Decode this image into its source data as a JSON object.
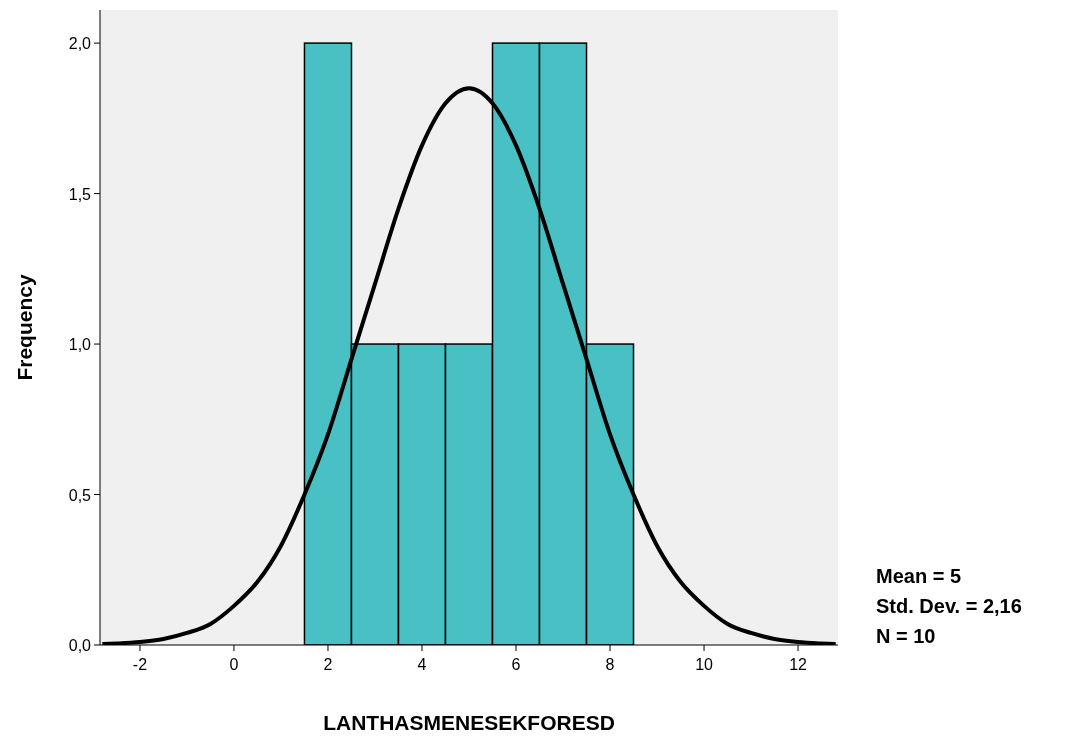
{
  "chart_data": {
    "type": "histogram",
    "xlabel": "LANTHASMENESEKFORESD",
    "ylabel": "Frequency",
    "xlim": [
      -2.85,
      12.85
    ],
    "xticks": [
      -2,
      0,
      2,
      4,
      6,
      8,
      10,
      12
    ],
    "ylim": [
      0,
      2.11
    ],
    "yticks": [
      {
        "value": 0,
        "label": "0,0"
      },
      {
        "value": 0.5,
        "label": "0,5"
      },
      {
        "value": 1,
        "label": "1,0"
      },
      {
        "value": 1.5,
        "label": "1,5"
      },
      {
        "value": 2,
        "label": "2,0"
      }
    ],
    "grid": false,
    "series": [
      {
        "color": "#48c0c4",
        "bins": [
          1.5,
          2.5,
          3.5,
          4.5,
          5.5,
          6.5,
          7.5,
          8.5
        ],
        "values": [
          2,
          1,
          1,
          1,
          2,
          2,
          1
        ]
      },
      {
        "type": "line",
        "color": "#000000",
        "x": [
          -2.8,
          -2.5,
          -2,
          -1.5,
          -1,
          -0.5,
          0,
          0.5,
          1,
          1.5,
          2,
          2.5,
          3,
          3.5,
          4,
          4.5,
          5,
          5.5,
          6,
          6.5,
          7,
          7.5,
          8,
          8.5,
          9,
          9.5,
          10,
          10.5,
          11,
          11.5,
          12,
          12.5,
          12.8
        ],
        "values": [
          0.003,
          0.005,
          0.01,
          0.02,
          0.04,
          0.07,
          0.13,
          0.21,
          0.33,
          0.5,
          0.7,
          0.95,
          1.2,
          1.45,
          1.66,
          1.8,
          1.85,
          1.8,
          1.66,
          1.45,
          1.2,
          0.95,
          0.7,
          0.5,
          0.33,
          0.21,
          0.13,
          0.07,
          0.04,
          0.02,
          0.01,
          0.005,
          0.003
        ]
      }
    ],
    "annotations": [
      "Mean = 5",
      "Std. Dev. = 2,16",
      "N = 10"
    ]
  }
}
